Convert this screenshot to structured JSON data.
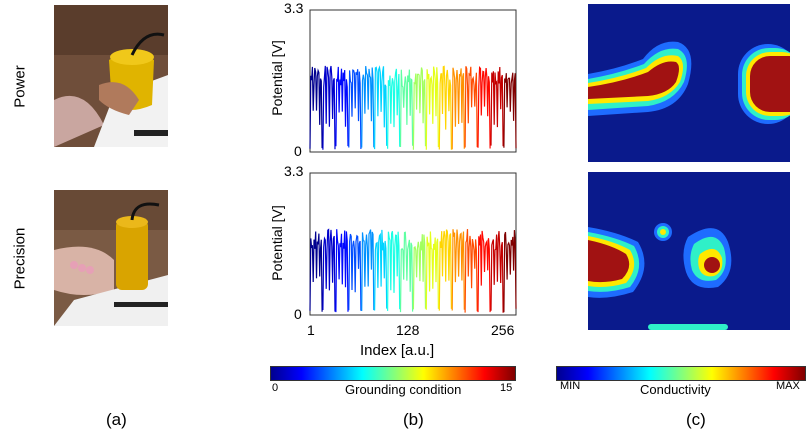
{
  "rows": {
    "top_label": "Power",
    "bottom_label": "Precision"
  },
  "panels": {
    "a": "(a)",
    "b": "(b)",
    "c": "(c)"
  },
  "chart_data": [
    {
      "type": "line",
      "title": "",
      "ylabel": "Potential [V]",
      "xlabel": "",
      "ylim": [
        0,
        3.3
      ],
      "xlim": [
        1,
        256
      ],
      "yticks": [
        "0",
        "3.3"
      ],
      "series_note": "16 grounding conditions, 16 samples each, colored by condition",
      "groups": 16,
      "baseline_peak": 1.8
    },
    {
      "type": "line",
      "title": "",
      "ylabel": "Potential [V]",
      "xlabel": "Index [a.u.]",
      "ylim": [
        0,
        3.3
      ],
      "xlim": [
        1,
        256
      ],
      "yticks": [
        "0",
        "3.3"
      ],
      "xticks": [
        "1",
        "128",
        "256"
      ],
      "groups": 16,
      "baseline_peak": 1.8
    }
  ],
  "colorbars": {
    "grounding": {
      "label": "Grounding condition",
      "min": "0",
      "max": "15"
    },
    "conductivity": {
      "label": "Conductivity",
      "min": "MIN",
      "max": "MAX"
    }
  },
  "colors": {
    "map_background": "#0a1a8c",
    "map_high": "#a11212"
  }
}
